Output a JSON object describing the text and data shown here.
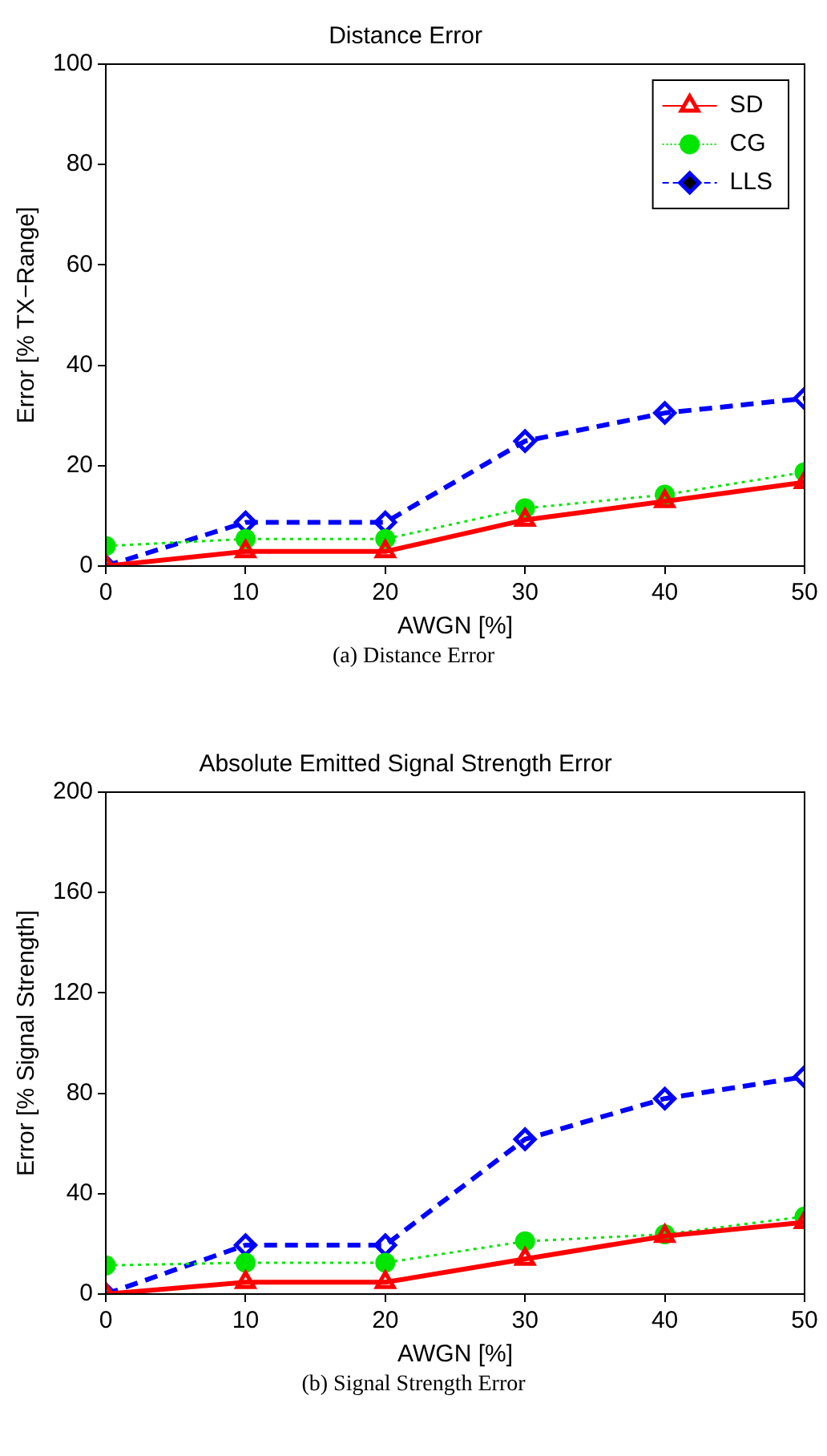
{
  "chart_data": [
    {
      "type": "line",
      "title": "Distance Error",
      "xlabel": "AWGN [%]",
      "ylabel": "Error [% TX−Range]",
      "x": [
        0,
        10,
        20,
        30,
        40,
        50
      ],
      "xlim": [
        0,
        50
      ],
      "xticks": [
        0,
        10,
        20,
        30,
        40,
        50
      ],
      "ylim": [
        0,
        100
      ],
      "yticks": [
        0,
        20,
        40,
        60,
        80,
        100
      ],
      "grid": false,
      "legend": "top right",
      "annotations": [
        "(a)  Distance Error"
      ],
      "series": [
        {
          "name": "SD",
          "color": "#ff0000",
          "marker": "triangle",
          "line_style": "solid",
          "values": [
            0,
            2.9,
            2.9,
            9.2,
            12.9,
            16.7
          ]
        },
        {
          "name": "CG",
          "color": "#00e600",
          "marker": "circle",
          "line_style": "dotted",
          "values": [
            4.0,
            5.4,
            5.4,
            11.5,
            14.2,
            18.7
          ]
        },
        {
          "name": "LLS",
          "color": "#0000ff",
          "marker": "diamond",
          "line_style": "dashed",
          "values": [
            0,
            8.7,
            8.7,
            24.9,
            30.5,
            33.4
          ]
        }
      ]
    },
    {
      "type": "line",
      "title": "Absolute Emitted Signal Strength Error",
      "xlabel": "AWGN [%]",
      "ylabel": "Error [% Signal Strength]",
      "x": [
        0,
        10,
        20,
        30,
        40,
        50
      ],
      "xlim": [
        0,
        50
      ],
      "xticks": [
        0,
        10,
        20,
        30,
        40,
        50
      ],
      "ylim": [
        0,
        200
      ],
      "yticks": [
        0,
        40,
        80,
        120,
        160,
        200
      ],
      "grid": false,
      "annotations": [
        "(b)  Signal Strength Error"
      ],
      "series": [
        {
          "color": "#ff0000",
          "marker": "triangle",
          "line_style": "solid",
          "values": [
            0,
            4.7,
            4.7,
            14,
            23.1,
            28.6
          ]
        },
        {
          "color": "#00e600",
          "marker": "circle",
          "line_style": "dotted",
          "values": [
            11.4,
            12.5,
            12.5,
            21,
            23.8,
            30.9
          ]
        },
        {
          "color": "#0000ff",
          "marker": "diamond",
          "line_style": "dashed",
          "values": [
            0,
            19.5,
            19.5,
            61.7,
            77.9,
            86.6
          ]
        }
      ]
    }
  ]
}
